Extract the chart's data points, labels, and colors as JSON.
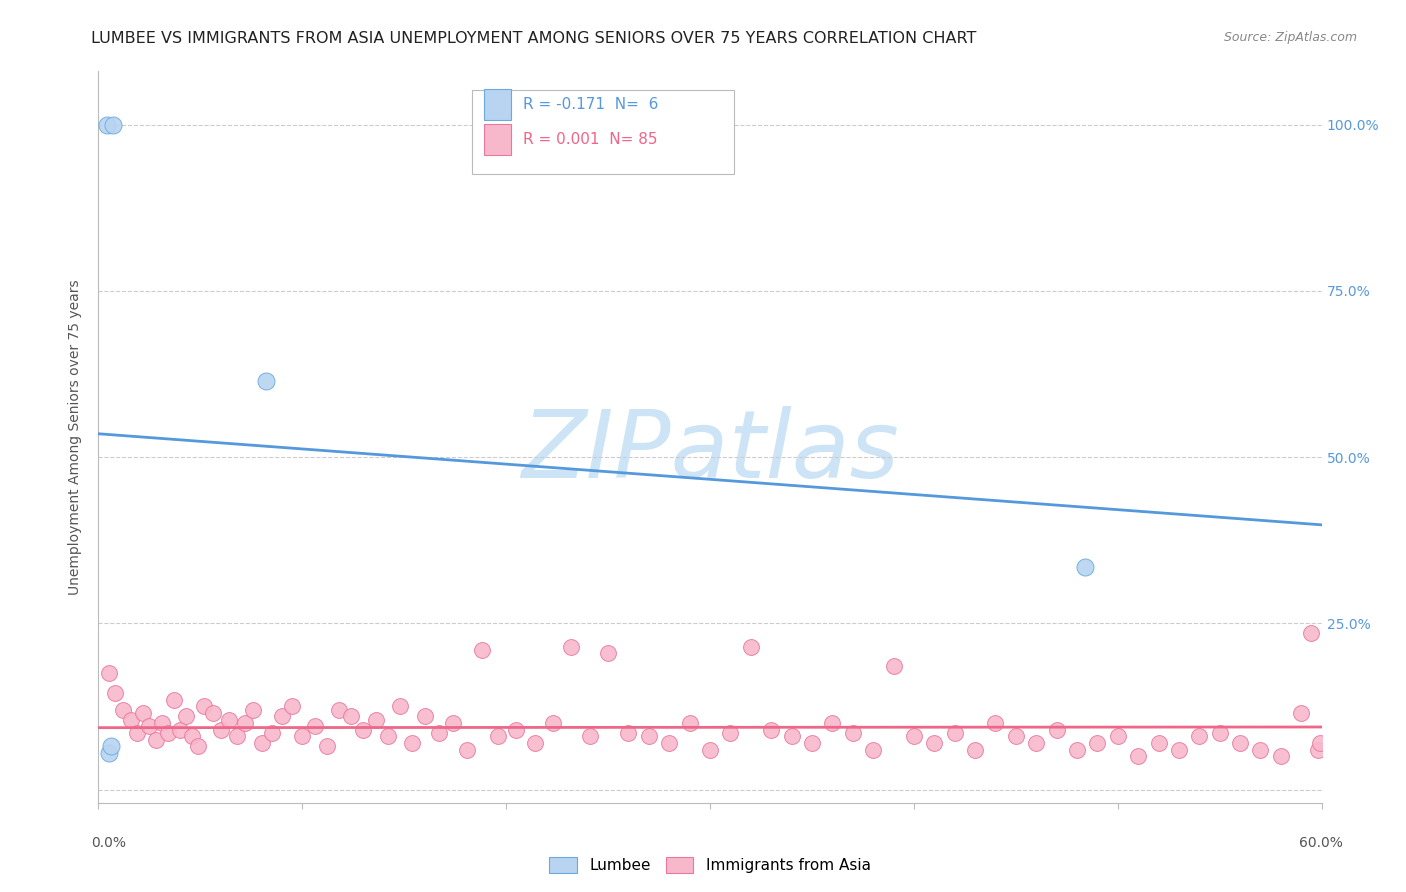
{
  "title": "LUMBEE VS IMMIGRANTS FROM ASIA UNEMPLOYMENT AMONG SENIORS OVER 75 YEARS CORRELATION CHART",
  "source": "Source: ZipAtlas.com",
  "ylabel": "Unemployment Among Seniors over 75 years",
  "xlim": [
    0.0,
    0.6
  ],
  "ylim": [
    -0.02,
    1.08
  ],
  "lumbee_color": "#b8d4f0",
  "lumbee_edge_color": "#6aaae0",
  "asia_color": "#f8b8cc",
  "asia_edge_color": "#e878a0",
  "blue_line_color": "#5599dd",
  "pink_line_color": "#ee6688",
  "lumbee_R": -0.171,
  "lumbee_N": 6,
  "asia_R": 0.001,
  "asia_N": 85,
  "lumbee_points_x": [
    0.004,
    0.007,
    0.082,
    0.005,
    0.006,
    0.484
  ],
  "lumbee_points_y": [
    1.0,
    1.0,
    0.615,
    0.055,
    0.065,
    0.335
  ],
  "lumbee_trend_x": [
    0.0,
    0.6
  ],
  "lumbee_trend_y": [
    0.535,
    0.398
  ],
  "asia_trend_x": [
    0.0,
    0.6
  ],
  "asia_trend_y": [
    0.093,
    0.094
  ],
  "asia_points_x": [
    0.005,
    0.008,
    0.012,
    0.016,
    0.019,
    0.022,
    0.025,
    0.028,
    0.031,
    0.034,
    0.037,
    0.04,
    0.043,
    0.046,
    0.049,
    0.052,
    0.056,
    0.06,
    0.064,
    0.068,
    0.072,
    0.076,
    0.08,
    0.085,
    0.09,
    0.095,
    0.1,
    0.106,
    0.112,
    0.118,
    0.124,
    0.13,
    0.136,
    0.142,
    0.148,
    0.154,
    0.16,
    0.167,
    0.174,
    0.181,
    0.188,
    0.196,
    0.205,
    0.214,
    0.223,
    0.232,
    0.241,
    0.25,
    0.26,
    0.27,
    0.28,
    0.29,
    0.3,
    0.31,
    0.32,
    0.33,
    0.34,
    0.35,
    0.36,
    0.37,
    0.38,
    0.39,
    0.4,
    0.41,
    0.42,
    0.43,
    0.44,
    0.45,
    0.46,
    0.47,
    0.48,
    0.49,
    0.5,
    0.51,
    0.52,
    0.53,
    0.54,
    0.55,
    0.56,
    0.57,
    0.58,
    0.59,
    0.595,
    0.598,
    0.599
  ],
  "asia_points_y": [
    0.175,
    0.145,
    0.12,
    0.105,
    0.085,
    0.115,
    0.095,
    0.075,
    0.1,
    0.085,
    0.135,
    0.09,
    0.11,
    0.08,
    0.065,
    0.125,
    0.115,
    0.09,
    0.105,
    0.08,
    0.1,
    0.12,
    0.07,
    0.085,
    0.11,
    0.125,
    0.08,
    0.095,
    0.065,
    0.12,
    0.11,
    0.09,
    0.105,
    0.08,
    0.125,
    0.07,
    0.11,
    0.085,
    0.1,
    0.06,
    0.21,
    0.08,
    0.09,
    0.07,
    0.1,
    0.215,
    0.08,
    0.205,
    0.085,
    0.08,
    0.07,
    0.1,
    0.06,
    0.085,
    0.215,
    0.09,
    0.08,
    0.07,
    0.1,
    0.085,
    0.06,
    0.185,
    0.08,
    0.07,
    0.085,
    0.06,
    0.1,
    0.08,
    0.07,
    0.09,
    0.06,
    0.07,
    0.08,
    0.05,
    0.07,
    0.06,
    0.08,
    0.085,
    0.07,
    0.06,
    0.05,
    0.115,
    0.235,
    0.06,
    0.07
  ],
  "watermark_text": "ZIPatlas",
  "watermark_color": "#cce4f5",
  "background_color": "#ffffff",
  "grid_color": "#cccccc",
  "title_fontsize": 11.5,
  "source_fontsize": 9,
  "label_fontsize": 10,
  "tick_fontsize": 10,
  "legend_fontsize": 11,
  "right_tick_color": "#5599dd"
}
